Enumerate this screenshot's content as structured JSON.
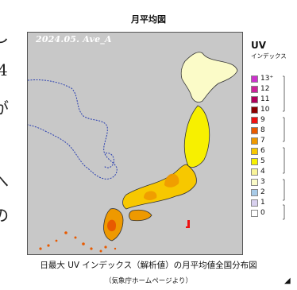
{
  "page_fragments": {
    "left_chars": [
      "し",
      "4",
      "が",
      "へ",
      "の"
    ]
  },
  "map": {
    "title": "月平均図",
    "label": "2024.05. Ave_A",
    "background_color": "#c8c8c8",
    "subject": "Japan - monthly mean of daily maximum UV index"
  },
  "legend": {
    "title": "UV",
    "subtitle": "インデックス",
    "items": [
      {
        "label": "13⁺",
        "color": "#cc33cc"
      },
      {
        "label": "12",
        "color": "#cc2299"
      },
      {
        "label": "11",
        "color": "#b0005a"
      },
      {
        "label": "10",
        "color": "#8b0000"
      },
      {
        "label": "9",
        "color": "#ee1111"
      },
      {
        "label": "8",
        "color": "#e85a00"
      },
      {
        "label": "7",
        "color": "#ee9900"
      },
      {
        "label": "6",
        "color": "#f7c800"
      },
      {
        "label": "5",
        "color": "#f7f000"
      },
      {
        "label": "4",
        "color": "#f9f499"
      },
      {
        "label": "3",
        "color": "#fbfbc8"
      },
      {
        "label": "2",
        "color": "#a8cbe8"
      },
      {
        "label": "1",
        "color": "#d8d0ee"
      },
      {
        "label": "0",
        "color": "#ffffff"
      }
    ]
  },
  "caption": {
    "line1": "日最大 UV インデックス（解析値）の月平均値全国分布図",
    "line2": "（気象庁ホームページより）"
  }
}
